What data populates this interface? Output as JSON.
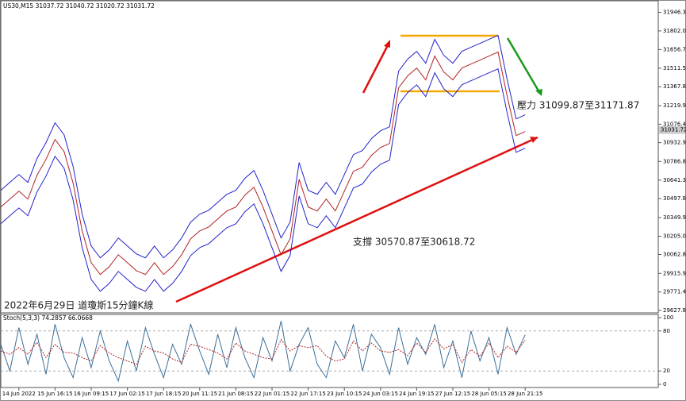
{
  "chart_data": [
    {
      "type": "line",
      "title": "US30,M15  31037.72 31040.72 31020.72 31031.72",
      "annotations": [
        "壓力 31099.87至31171.87",
        "支撐 30570.87至30618.72",
        "2022年6月29日 道瓊斯15分鐘K線"
      ],
      "current_price": 31031.72,
      "ylim": [
        29615,
        32030
      ],
      "yticks": [
        {
          "value": 31946.3,
          "label": "31946.30"
        },
        {
          "value": 31802.05,
          "label": "31802.05"
        },
        31656.79,
        31511.54,
        31367.85,
        31219.95,
        {
          "value": 31076.4,
          "label": "31076.40"
        },
        30932.95,
        30786.85,
        {
          "value": 30641.3,
          "label": "30641.30"
        },
        30497.85,
        30349.95,
        30205.05,
        30062.85,
        29915.95,
        {
          "value": 29771.4,
          "label": "29771.40"
        },
        29627.85
      ],
      "series": [
        {
          "color": "#b22222",
          "values": [
            30432,
            30494,
            30555,
            30494,
            30679,
            30803,
            30957,
            30864,
            30617,
            30246,
            29999,
            29907,
            29968,
            30061,
            29999,
            29937,
            29907,
            29999,
            29907,
            29968,
            30061,
            30185,
            30246,
            30277,
            30339,
            30401,
            30432,
            30525,
            30586,
            30432,
            30246,
            30061,
            30185,
            30648,
            30432,
            30401,
            30494,
            30401,
            30555,
            30710,
            30741,
            30834,
            30895,
            30926,
            31359,
            31452,
            31513,
            31421,
            31606,
            31482,
            31421,
            31513,
            31544,
            31575,
            31606,
            31637,
            31297,
            30988,
            31019
          ]
        },
        {
          "color": "#2222cc",
          "values": [
            30562,
            30624,
            30685,
            30624,
            30809,
            30933,
            31087,
            30994,
            30747,
            30376,
            30129,
            30037,
            30098,
            30191,
            30129,
            30067,
            30037,
            30129,
            30037,
            30098,
            30191,
            30315,
            30376,
            30407,
            30469,
            30531,
            30562,
            30655,
            30716,
            30562,
            30376,
            30191,
            30315,
            30778,
            30562,
            30531,
            30624,
            30531,
            30685,
            30840,
            30871,
            30964,
            31025,
            31056,
            31489,
            31582,
            31643,
            31551,
            31736,
            31612,
            31551,
            31643,
            31674,
            31705,
            31736,
            31767,
            31427,
            31118,
            31149
          ]
        },
        {
          "color": "#2222cc",
          "values": [
            30302,
            30364,
            30425,
            30364,
            30549,
            30673,
            30827,
            30734,
            30487,
            30116,
            29869,
            29777,
            29838,
            29931,
            29869,
            29807,
            29777,
            29869,
            29777,
            29838,
            29931,
            30055,
            30116,
            30147,
            30209,
            30271,
            30302,
            30395,
            30456,
            30302,
            30116,
            29931,
            30055,
            30518,
            30302,
            30271,
            30364,
            30271,
            30425,
            30580,
            30611,
            30704,
            30765,
            30796,
            31229,
            31322,
            31383,
            31291,
            31476,
            31352,
            31291,
            31383,
            31414,
            31445,
            31476,
            31507,
            31167,
            30858,
            30889
          ]
        }
      ]
    },
    {
      "type": "line",
      "title": "Stoch(5,3,3) 74.2857 66.0668",
      "ylim": [
        0,
        100
      ],
      "yticks": [
        0,
        20,
        80,
        100
      ],
      "categories": [
        null,
        null,
        "14 Jun 2022",
        null,
        null,
        null,
        "15 Jun 16:15",
        null,
        null,
        null,
        "16 Jun 09:15",
        null,
        null,
        null,
        "17 Jun 02:15",
        null,
        null,
        null,
        "17 Jun 18:15",
        null,
        null,
        null,
        "20 Jun 11:15",
        null,
        null,
        null,
        "21 Jun 08:15",
        null,
        null,
        null,
        "22 Jun 01:15",
        null,
        null,
        null,
        "22 Jun 17:15",
        null,
        null,
        null,
        "23 Jun 10:15",
        null,
        null,
        null,
        "24 Jun 03:15",
        null,
        null,
        null,
        "24 Jun 19:15",
        null,
        null,
        null,
        "27 Jun 12:15",
        null,
        null,
        null,
        "28 Jun 05:15",
        null,
        null,
        null,
        "28 Jun 21:15"
      ],
      "series": [
        {
          "color": "#3a6f9a",
          "values": [
            60,
            20,
            85,
            30,
            75,
            15,
            90,
            40,
            10,
            70,
            25,
            80,
            35,
            5,
            65,
            20,
            85,
            45,
            10,
            60,
            30,
            90,
            50,
            15,
            75,
            25,
            85,
            40,
            10,
            70,
            35,
            95,
            20,
            60,
            85,
            30,
            10,
            65,
            40,
            90,
            20,
            75,
            55,
            15,
            85,
            30,
            70,
            45,
            90,
            25,
            65,
            10,
            80,
            35,
            70,
            15,
            85,
            45,
            74.2857
          ]
        },
        {
          "color": "#b22222",
          "dashed": true,
          "values": [
            50,
            45,
            55,
            45,
            63,
            40,
            60,
            48,
            47,
            40,
            35,
            58,
            47,
            40,
            35,
            30,
            57,
            50,
            47,
            38,
            33,
            60,
            57,
            52,
            47,
            38,
            62,
            50,
            45,
            40,
            38,
            67,
            50,
            58,
            55,
            58,
            42,
            35,
            38,
            65,
            50,
            62,
            50,
            48,
            52,
            43,
            62,
            48,
            68,
            53,
            60,
            33,
            52,
            42,
            62,
            40,
            57,
            48,
            66.0668
          ]
        }
      ]
    }
  ]
}
